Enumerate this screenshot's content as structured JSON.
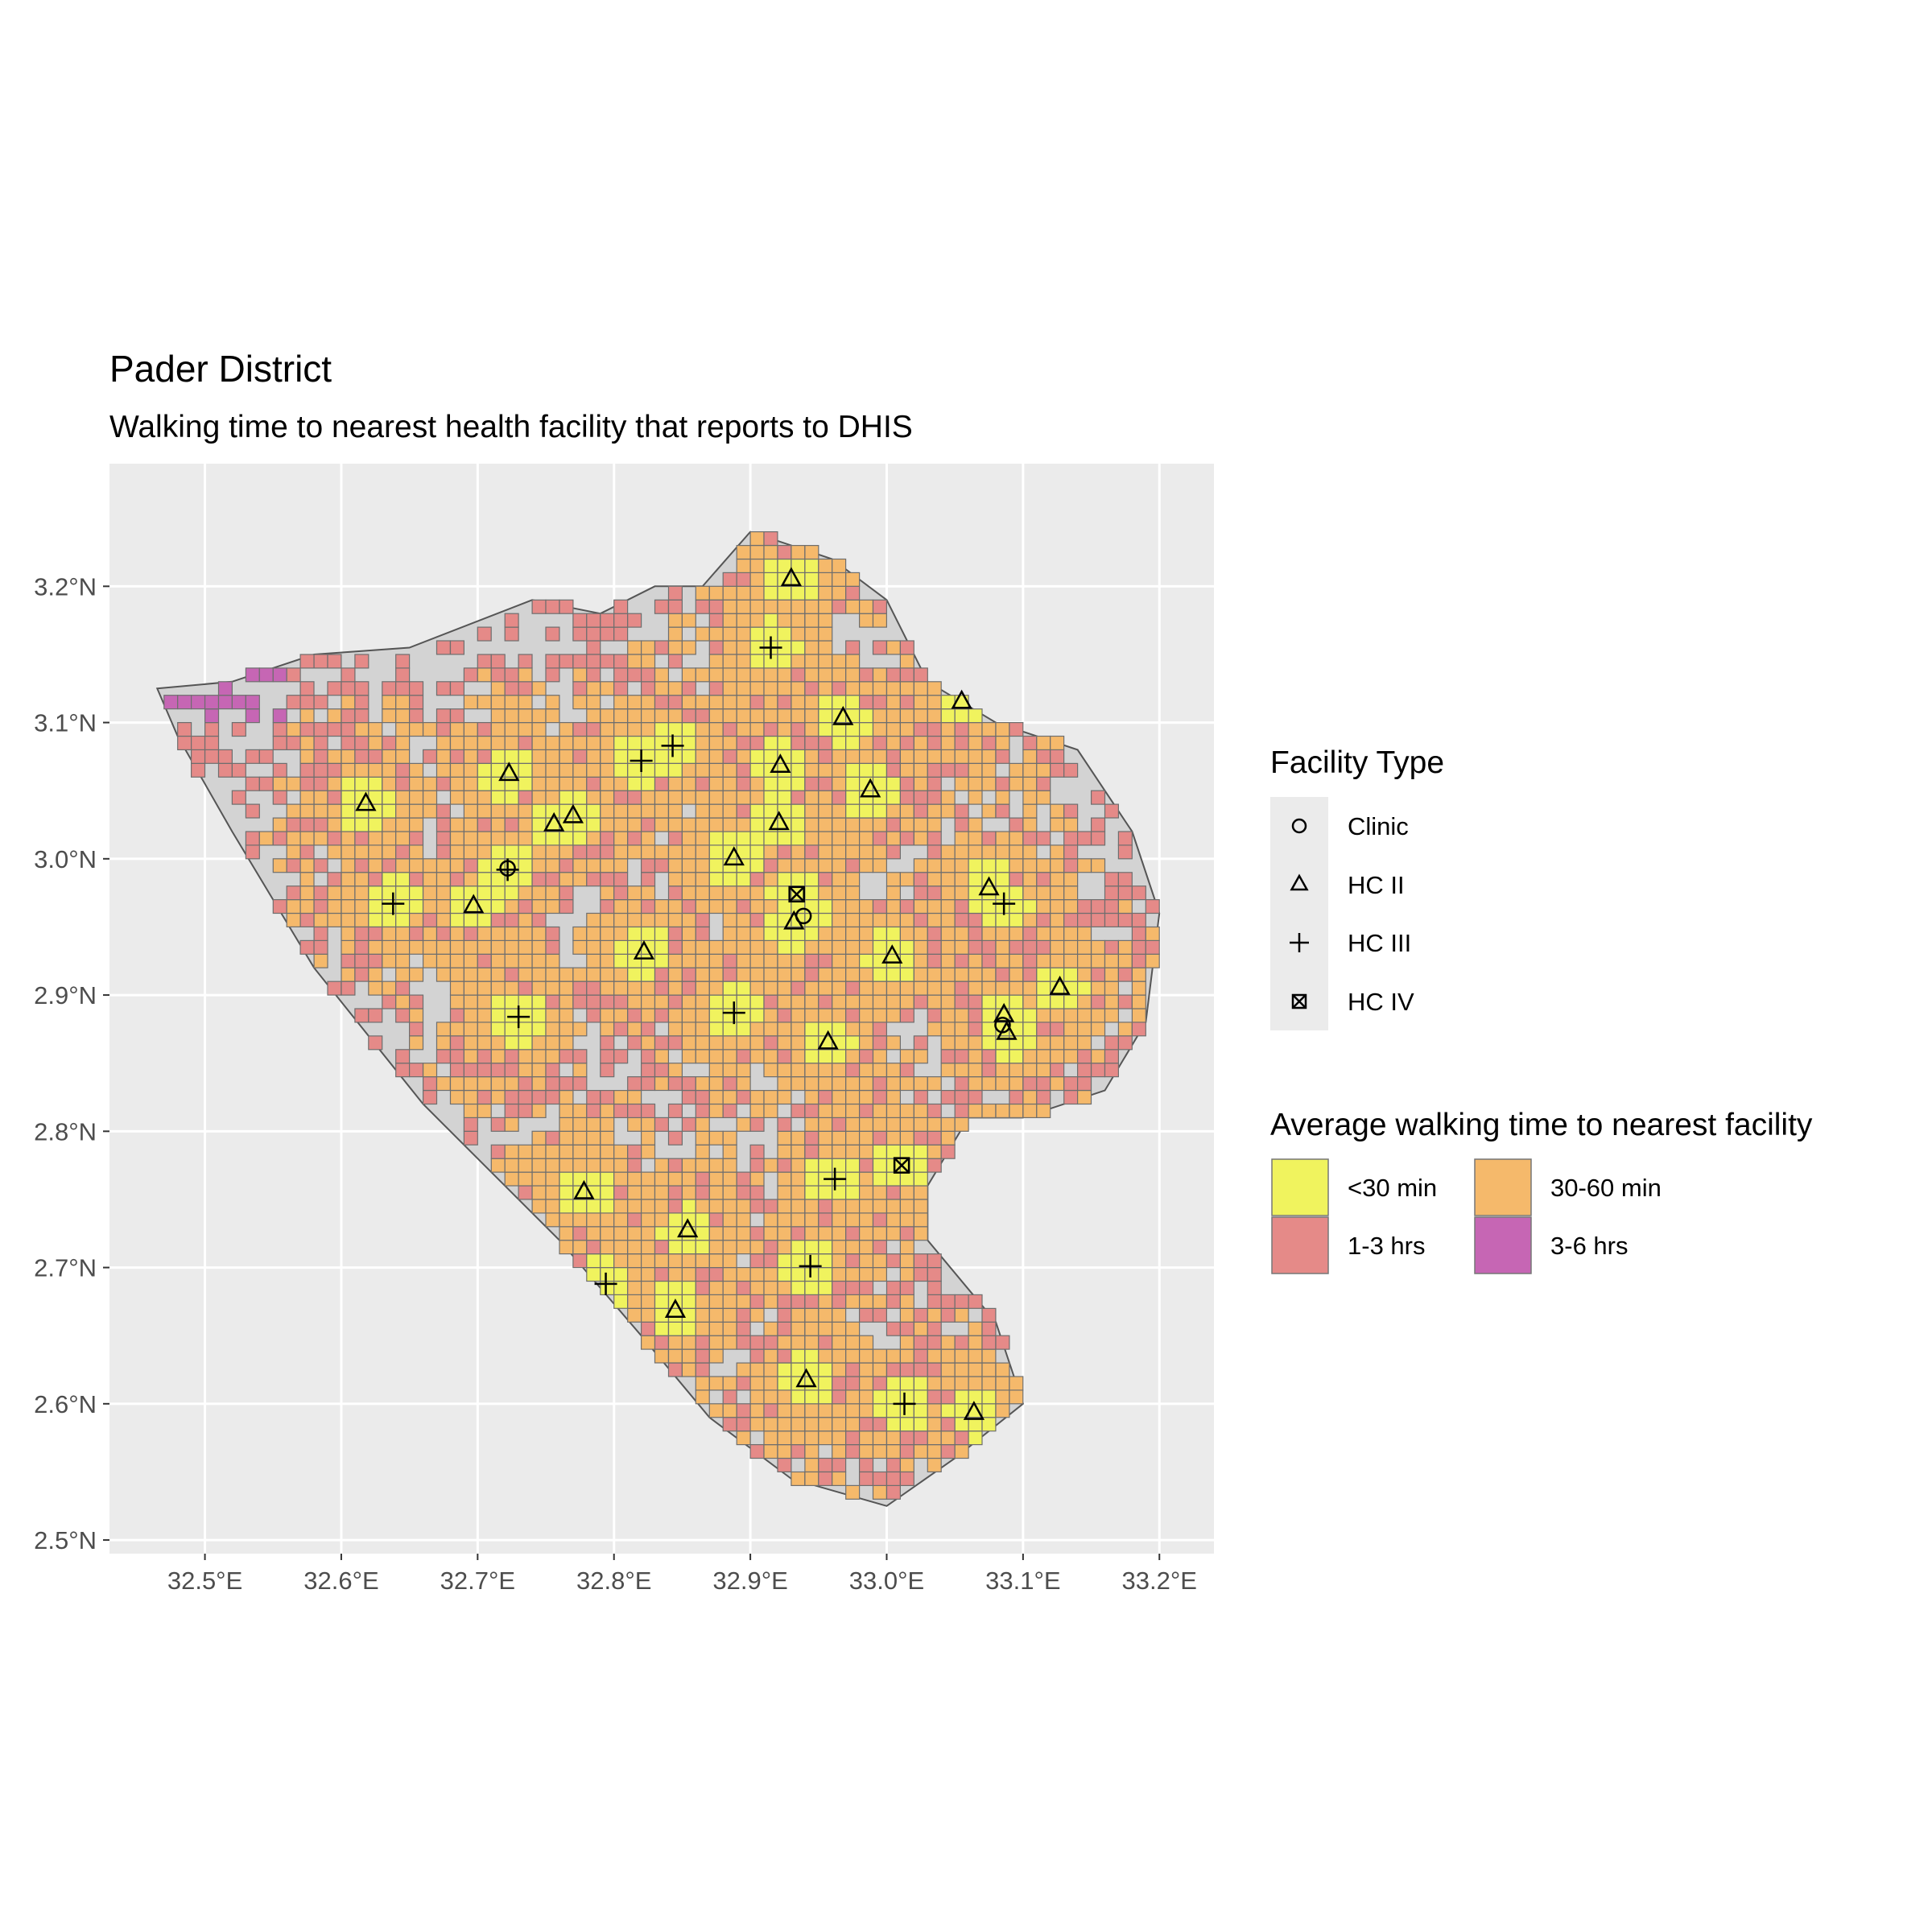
{
  "title": "Pader District",
  "subtitle": "Walking time to nearest health facility that reports to DHIS",
  "map": {
    "x_ticks": [
      {
        "value": 32.5,
        "label": "32.5°E"
      },
      {
        "value": 32.6,
        "label": "32.6°E"
      },
      {
        "value": 32.7,
        "label": "32.7°E"
      },
      {
        "value": 32.8,
        "label": "32.8°E"
      },
      {
        "value": 32.9,
        "label": "32.9°E"
      },
      {
        "value": 33.0,
        "label": "33.0°E"
      },
      {
        "value": 33.1,
        "label": "33.1°E"
      },
      {
        "value": 33.2,
        "label": "33.2°E"
      }
    ],
    "y_ticks": [
      {
        "value": 2.5,
        "label": "2.5°N"
      },
      {
        "value": 2.6,
        "label": "2.6°N"
      },
      {
        "value": 2.7,
        "label": "2.7°N"
      },
      {
        "value": 2.8,
        "label": "2.8°N"
      },
      {
        "value": 2.9,
        "label": "2.9°N"
      },
      {
        "value": 3.0,
        "label": "3.0°N"
      },
      {
        "value": 3.1,
        "label": "3.1°N"
      },
      {
        "value": 3.2,
        "label": "3.2°N"
      }
    ],
    "xlim": [
      32.43,
      33.24
    ],
    "ylim": [
      2.49,
      3.29
    ],
    "panel_background": "#ebebeb",
    "grid_color": "#ffffff",
    "district_fill": "#d3d3d3",
    "district_outline": "#555555",
    "grid_cell_size_deg": 0.01,
    "district_outline_points": [
      [
        32.465,
        3.125
      ],
      [
        32.52,
        3.13
      ],
      [
        32.58,
        3.15
      ],
      [
        32.65,
        3.155
      ],
      [
        32.74,
        3.19
      ],
      [
        32.79,
        3.18
      ],
      [
        32.83,
        3.2
      ],
      [
        32.865,
        3.2
      ],
      [
        32.9,
        3.24
      ],
      [
        32.96,
        3.22
      ],
      [
        33.0,
        3.19
      ],
      [
        33.03,
        3.13
      ],
      [
        33.08,
        3.1
      ],
      [
        33.14,
        3.08
      ],
      [
        33.18,
        3.02
      ],
      [
        33.2,
        2.96
      ],
      [
        33.19,
        2.88
      ],
      [
        33.16,
        2.83
      ],
      [
        33.1,
        2.81
      ],
      [
        33.06,
        2.81
      ],
      [
        33.03,
        2.76
      ],
      [
        33.03,
        2.72
      ],
      [
        33.08,
        2.66
      ],
      [
        33.1,
        2.6
      ],
      [
        33.05,
        2.56
      ],
      [
        33.0,
        2.525
      ],
      [
        32.93,
        2.545
      ],
      [
        32.87,
        2.59
      ],
      [
        32.82,
        2.65
      ],
      [
        32.76,
        2.72
      ],
      [
        32.66,
        2.82
      ],
      [
        32.58,
        2.92
      ],
      [
        32.52,
        3.02
      ],
      [
        32.48,
        3.09
      ]
    ],
    "categories": [
      {
        "label": "<30 min",
        "color": "#f0f35e"
      },
      {
        "label": "30-60 min",
        "color": "#f5b96b"
      },
      {
        "label": "1-3 hrs",
        "color": "#e58a88"
      },
      {
        "label": "3-6 hrs",
        "color": "#c666b4"
      }
    ],
    "facilities": [
      {
        "type": "HC II",
        "lon": 32.93,
        "lat": 3.205
      },
      {
        "type": "HC III",
        "lon": 32.915,
        "lat": 3.155
      },
      {
        "type": "HC II",
        "lon": 33.055,
        "lat": 3.115
      },
      {
        "type": "HC II",
        "lon": 32.968,
        "lat": 3.103
      },
      {
        "type": "HC III",
        "lon": 32.843,
        "lat": 3.083
      },
      {
        "type": "HC III",
        "lon": 32.82,
        "lat": 3.072
      },
      {
        "type": "HC II",
        "lon": 32.922,
        "lat": 3.068
      },
      {
        "type": "HC II",
        "lon": 32.723,
        "lat": 3.062
      },
      {
        "type": "HC II",
        "lon": 32.988,
        "lat": 3.05
      },
      {
        "type": "HC II",
        "lon": 32.618,
        "lat": 3.04
      },
      {
        "type": "HC II",
        "lon": 32.77,
        "lat": 3.031
      },
      {
        "type": "HC II",
        "lon": 32.921,
        "lat": 3.026
      },
      {
        "type": "HC II",
        "lon": 32.756,
        "lat": 3.025
      },
      {
        "type": "HC II",
        "lon": 32.888,
        "lat": 3.0
      },
      {
        "type": "Clinic",
        "lon": 32.722,
        "lat": 2.993
      },
      {
        "type": "HC III",
        "lon": 32.722,
        "lat": 2.992
      },
      {
        "type": "HC II",
        "lon": 33.075,
        "lat": 2.978
      },
      {
        "type": "HC IV",
        "lon": 32.934,
        "lat": 2.974
      },
      {
        "type": "HC III",
        "lon": 32.638,
        "lat": 2.967
      },
      {
        "type": "HC III",
        "lon": 33.086,
        "lat": 2.967
      },
      {
        "type": "HC II",
        "lon": 32.697,
        "lat": 2.965
      },
      {
        "type": "Clinic",
        "lon": 32.939,
        "lat": 2.958
      },
      {
        "type": "HC II",
        "lon": 32.932,
        "lat": 2.953
      },
      {
        "type": "HC II",
        "lon": 32.822,
        "lat": 2.931
      },
      {
        "type": "HC II",
        "lon": 33.004,
        "lat": 2.928
      },
      {
        "type": "HC II",
        "lon": 33.127,
        "lat": 2.905
      },
      {
        "type": "HC III",
        "lon": 32.888,
        "lat": 2.887
      },
      {
        "type": "HC III",
        "lon": 32.73,
        "lat": 2.884
      },
      {
        "type": "HC II",
        "lon": 33.086,
        "lat": 2.885
      },
      {
        "type": "Clinic",
        "lon": 33.085,
        "lat": 2.878
      },
      {
        "type": "HC II",
        "lon": 33.088,
        "lat": 2.872
      },
      {
        "type": "HC II",
        "lon": 32.957,
        "lat": 2.865
      },
      {
        "type": "HC IV",
        "lon": 33.011,
        "lat": 2.775
      },
      {
        "type": "HC III",
        "lon": 32.962,
        "lat": 2.765
      },
      {
        "type": "HC II",
        "lon": 32.778,
        "lat": 2.755
      },
      {
        "type": "HC II",
        "lon": 32.854,
        "lat": 2.727
      },
      {
        "type": "HC III",
        "lon": 32.944,
        "lat": 2.701
      },
      {
        "type": "HC III",
        "lon": 32.794,
        "lat": 2.688
      },
      {
        "type": "HC II",
        "lon": 32.845,
        "lat": 2.668
      },
      {
        "type": "HC II",
        "lon": 32.941,
        "lat": 2.617
      },
      {
        "type": "HC III",
        "lon": 33.013,
        "lat": 2.6
      },
      {
        "type": "HC II",
        "lon": 33.064,
        "lat": 2.593
      }
    ]
  },
  "legend": {
    "facility_title": "Facility Type",
    "facility_types": [
      {
        "label": "Clinic",
        "shape": "open-circle"
      },
      {
        "label": "HC II",
        "shape": "open-triangle"
      },
      {
        "label": "HC III",
        "shape": "plus"
      },
      {
        "label": "HC IV",
        "shape": "boxed-x"
      }
    ],
    "time_title": "Average walking time to nearest facility",
    "time_items": [
      {
        "label": "<30 min",
        "color": "#f0f35e"
      },
      {
        "label": "30-60 min",
        "color": "#f5b96b"
      },
      {
        "label": "1-3 hrs",
        "color": "#e58a88"
      },
      {
        "label": "3-6 hrs",
        "color": "#c666b4"
      }
    ]
  }
}
